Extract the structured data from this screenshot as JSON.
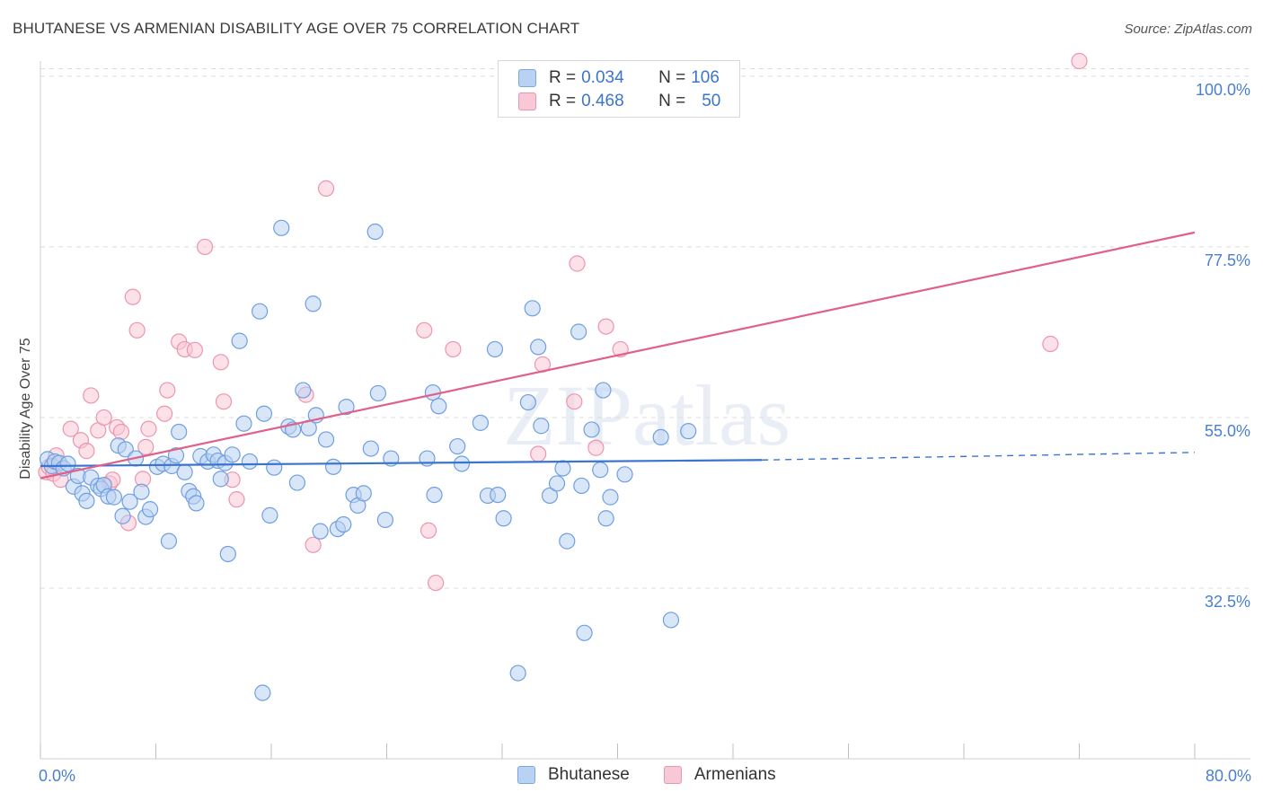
{
  "title": "BHUTANESE VS ARMENIAN DISABILITY AGE OVER 75 CORRELATION CHART",
  "source": "Source: ZipAtlas.com",
  "watermark": "ZIPatlas",
  "legend": {
    "rows": [
      {
        "r_label": "R = ",
        "r_value": "0.034",
        "n_label": "N = ",
        "n_value": "106",
        "color": "#7aa6e3"
      },
      {
        "r_label": "R = ",
        "r_value": "0.468",
        "n_label": "N = ",
        "n_value": "50",
        "color": "#ec95ae"
      }
    ]
  },
  "bottom_legend": {
    "series1": "Bhutanese",
    "series2": "Armenians"
  },
  "chart_data": {
    "type": "scatter",
    "title": "BHUTANESE VS ARMENIAN DISABILITY AGE OVER 75 CORRELATION CHART",
    "xlabel": "",
    "ylabel": "Disability Age Over 75",
    "xlim": [
      0,
      80
    ],
    "ylim": [
      10,
      102
    ],
    "x_tick_labels": [
      "0.0%",
      "80.0%"
    ],
    "y_ticks": [
      32.5,
      55.0,
      77.5,
      100.0
    ],
    "y_tick_labels": [
      "32.5%",
      "55.0%",
      "77.5%",
      "100.0%"
    ],
    "grid": true,
    "series": [
      {
        "name": "Bhutanese",
        "color": "#6f9fe0",
        "fill": "#b9d2f3",
        "trend": {
          "x": [
            0,
            50
          ],
          "y": [
            48.6,
            49.4
          ],
          "dashed_extension_to_x": 80,
          "dashed_end_y": 50.4,
          "line_color": "#3b74cf"
        },
        "points": [
          [
            0.5,
            49.5
          ],
          [
            0.8,
            48.6
          ],
          [
            1.0,
            49.2
          ],
          [
            1.3,
            49.0
          ],
          [
            1.6,
            48.3
          ],
          [
            1.9,
            48.9
          ],
          [
            2.3,
            45.9
          ],
          [
            2.6,
            47.3
          ],
          [
            2.9,
            45.0
          ],
          [
            3.2,
            44.0
          ],
          [
            3.5,
            47.1
          ],
          [
            4.0,
            46.0
          ],
          [
            4.2,
            45.6
          ],
          [
            4.4,
            46.1
          ],
          [
            4.7,
            44.6
          ],
          [
            5.1,
            44.5
          ],
          [
            5.4,
            51.3
          ],
          [
            5.7,
            42.0
          ],
          [
            5.9,
            50.8
          ],
          [
            6.2,
            43.9
          ],
          [
            6.6,
            49.6
          ],
          [
            7.0,
            45.2
          ],
          [
            7.3,
            41.9
          ],
          [
            7.6,
            42.9
          ],
          [
            8.1,
            48.5
          ],
          [
            8.5,
            48.9
          ],
          [
            8.9,
            38.7
          ],
          [
            9.1,
            48.6
          ],
          [
            9.4,
            50.0
          ],
          [
            9.6,
            53.1
          ],
          [
            10.0,
            47.8
          ],
          [
            10.3,
            45.3
          ],
          [
            10.6,
            44.6
          ],
          [
            10.8,
            43.7
          ],
          [
            11.1,
            49.9
          ],
          [
            11.6,
            49.2
          ],
          [
            12.0,
            50.1
          ],
          [
            12.3,
            49.3
          ],
          [
            12.5,
            46.9
          ],
          [
            12.8,
            49.0
          ],
          [
            13.0,
            37.0
          ],
          [
            13.3,
            50.1
          ],
          [
            13.8,
            65.1
          ],
          [
            14.1,
            54.2
          ],
          [
            14.5,
            49.2
          ],
          [
            15.2,
            69.0
          ],
          [
            15.4,
            18.7
          ],
          [
            15.5,
            55.5
          ],
          [
            15.9,
            42.1
          ],
          [
            16.2,
            48.4
          ],
          [
            16.7,
            80.0
          ],
          [
            17.2,
            53.8
          ],
          [
            17.5,
            53.4
          ],
          [
            17.8,
            46.4
          ],
          [
            18.2,
            58.6
          ],
          [
            18.6,
            53.6
          ],
          [
            18.9,
            70.0
          ],
          [
            19.1,
            55.3
          ],
          [
            19.4,
            40.0
          ],
          [
            19.8,
            52.1
          ],
          [
            20.3,
            48.5
          ],
          [
            20.6,
            40.3
          ],
          [
            21.0,
            40.9
          ],
          [
            21.2,
            56.4
          ],
          [
            21.7,
            44.8
          ],
          [
            22.0,
            43.4
          ],
          [
            22.4,
            45.0
          ],
          [
            22.9,
            50.9
          ],
          [
            23.2,
            79.5
          ],
          [
            23.4,
            58.2
          ],
          [
            23.9,
            41.5
          ],
          [
            24.3,
            49.6
          ],
          [
            26.8,
            49.6
          ],
          [
            27.2,
            58.3
          ],
          [
            27.3,
            44.8
          ],
          [
            27.6,
            56.5
          ],
          [
            28.9,
            51.2
          ],
          [
            29.2,
            48.9
          ],
          [
            30.5,
            54.3
          ],
          [
            31.0,
            44.7
          ],
          [
            31.5,
            64.0
          ],
          [
            31.7,
            44.8
          ],
          [
            32.1,
            41.7
          ],
          [
            33.1,
            21.3
          ],
          [
            33.8,
            57.0
          ],
          [
            34.1,
            69.4
          ],
          [
            34.5,
            64.3
          ],
          [
            34.7,
            53.9
          ],
          [
            35.3,
            44.7
          ],
          [
            35.8,
            46.3
          ],
          [
            36.2,
            48.3
          ],
          [
            36.5,
            38.7
          ],
          [
            37.3,
            66.3
          ],
          [
            37.5,
            46.0
          ],
          [
            37.7,
            26.6
          ],
          [
            38.2,
            53.4
          ],
          [
            38.8,
            48.1
          ],
          [
            39.0,
            58.6
          ],
          [
            39.2,
            41.7
          ],
          [
            39.5,
            44.5
          ],
          [
            40.5,
            47.5
          ],
          [
            43.0,
            52.4
          ],
          [
            43.7,
            28.3
          ],
          [
            44.9,
            53.2
          ]
        ]
      },
      {
        "name": "Armenians",
        "color": "#ec95ae",
        "fill": "#f9c8d6",
        "trend": {
          "x": [
            0,
            80
          ],
          "y": [
            47.0,
            79.4
          ],
          "line_color": "#e0608a"
        },
        "points": [
          [
            0.4,
            47.8
          ],
          [
            0.6,
            48.5
          ],
          [
            0.9,
            47.6
          ],
          [
            1.1,
            50.0
          ],
          [
            1.4,
            46.8
          ],
          [
            2.1,
            53.5
          ],
          [
            2.8,
            52.0
          ],
          [
            3.2,
            50.6
          ],
          [
            3.5,
            57.9
          ],
          [
            4.0,
            53.3
          ],
          [
            4.4,
            55.0
          ],
          [
            4.8,
            46.3
          ],
          [
            5.0,
            46.8
          ],
          [
            5.3,
            53.7
          ],
          [
            5.6,
            53.1
          ],
          [
            6.1,
            41.1
          ],
          [
            6.4,
            70.9
          ],
          [
            6.7,
            66.5
          ],
          [
            7.1,
            46.9
          ],
          [
            7.3,
            51.1
          ],
          [
            7.5,
            53.5
          ],
          [
            8.6,
            55.5
          ],
          [
            8.8,
            58.6
          ],
          [
            9.6,
            65.0
          ],
          [
            10.0,
            64.0
          ],
          [
            10.7,
            63.9
          ],
          [
            11.4,
            77.5
          ],
          [
            12.5,
            62.3
          ],
          [
            12.7,
            57.1
          ],
          [
            13.3,
            46.8
          ],
          [
            13.6,
            44.2
          ],
          [
            18.4,
            58.0
          ],
          [
            18.9,
            38.2
          ],
          [
            19.8,
            85.2
          ],
          [
            26.6,
            66.5
          ],
          [
            26.9,
            40.1
          ],
          [
            27.4,
            33.2
          ],
          [
            28.6,
            64.0
          ],
          [
            34.5,
            50.2
          ],
          [
            34.8,
            62.0
          ],
          [
            37.0,
            57.1
          ],
          [
            37.2,
            75.3
          ],
          [
            38.5,
            51.0
          ],
          [
            39.2,
            67.0
          ],
          [
            40.2,
            64.0
          ],
          [
            70.0,
            64.7
          ],
          [
            72.0,
            102.0
          ]
        ]
      }
    ]
  }
}
